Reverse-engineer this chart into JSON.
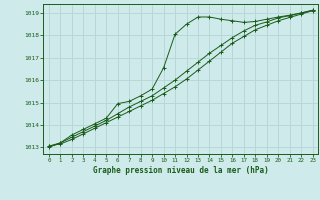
{
  "title": "Graphe pression niveau de la mer (hPa)",
  "background_color": "#ceeaea",
  "grid_color": "#b8d8d8",
  "line_color": "#1a5c1a",
  "marker_color": "#1a5c1a",
  "ylim": [
    1012.7,
    1019.4
  ],
  "xlim": [
    -0.5,
    23.5
  ],
  "yticks": [
    1013,
    1014,
    1015,
    1016,
    1017,
    1018,
    1019
  ],
  "xticks": [
    0,
    1,
    2,
    3,
    4,
    5,
    6,
    7,
    8,
    9,
    10,
    11,
    12,
    13,
    14,
    15,
    16,
    17,
    18,
    19,
    20,
    21,
    22,
    23
  ],
  "series1_x": [
    0,
    1,
    2,
    3,
    4,
    5,
    6,
    7,
    8,
    9,
    10,
    11,
    12,
    13,
    14,
    15,
    16,
    17,
    18,
    19,
    20,
    21,
    22,
    23
  ],
  "series1_y": [
    1013.05,
    1013.15,
    1013.35,
    1013.6,
    1013.85,
    1014.1,
    1014.35,
    1014.6,
    1014.85,
    1015.1,
    1015.4,
    1015.7,
    1016.05,
    1016.45,
    1016.85,
    1017.25,
    1017.65,
    1017.95,
    1018.25,
    1018.45,
    1018.65,
    1018.8,
    1018.95,
    1019.1
  ],
  "series2_x": [
    0,
    1,
    2,
    3,
    4,
    5,
    6,
    7,
    8,
    9,
    10,
    11,
    12,
    13,
    14,
    15,
    16,
    17,
    18,
    19,
    20,
    21,
    22,
    23
  ],
  "series2_y": [
    1013.05,
    1013.2,
    1013.45,
    1013.7,
    1013.95,
    1014.2,
    1014.5,
    1014.8,
    1015.05,
    1015.3,
    1015.65,
    1016.0,
    1016.4,
    1016.8,
    1017.2,
    1017.55,
    1017.9,
    1018.2,
    1018.45,
    1018.6,
    1018.78,
    1018.88,
    1019.0,
    1019.12
  ],
  "series3_x": [
    0,
    1,
    2,
    3,
    4,
    5,
    6,
    7,
    8,
    9,
    10,
    11,
    12,
    13,
    14,
    15,
    16,
    17,
    18,
    19,
    20,
    21,
    22,
    23
  ],
  "series3_y": [
    1013.0,
    1013.2,
    1013.55,
    1013.8,
    1014.05,
    1014.3,
    1014.95,
    1015.05,
    1015.3,
    1015.6,
    1016.55,
    1018.05,
    1018.5,
    1018.82,
    1018.82,
    1018.72,
    1018.65,
    1018.58,
    1018.62,
    1018.72,
    1018.82,
    1018.9,
    1019.0,
    1019.12
  ]
}
